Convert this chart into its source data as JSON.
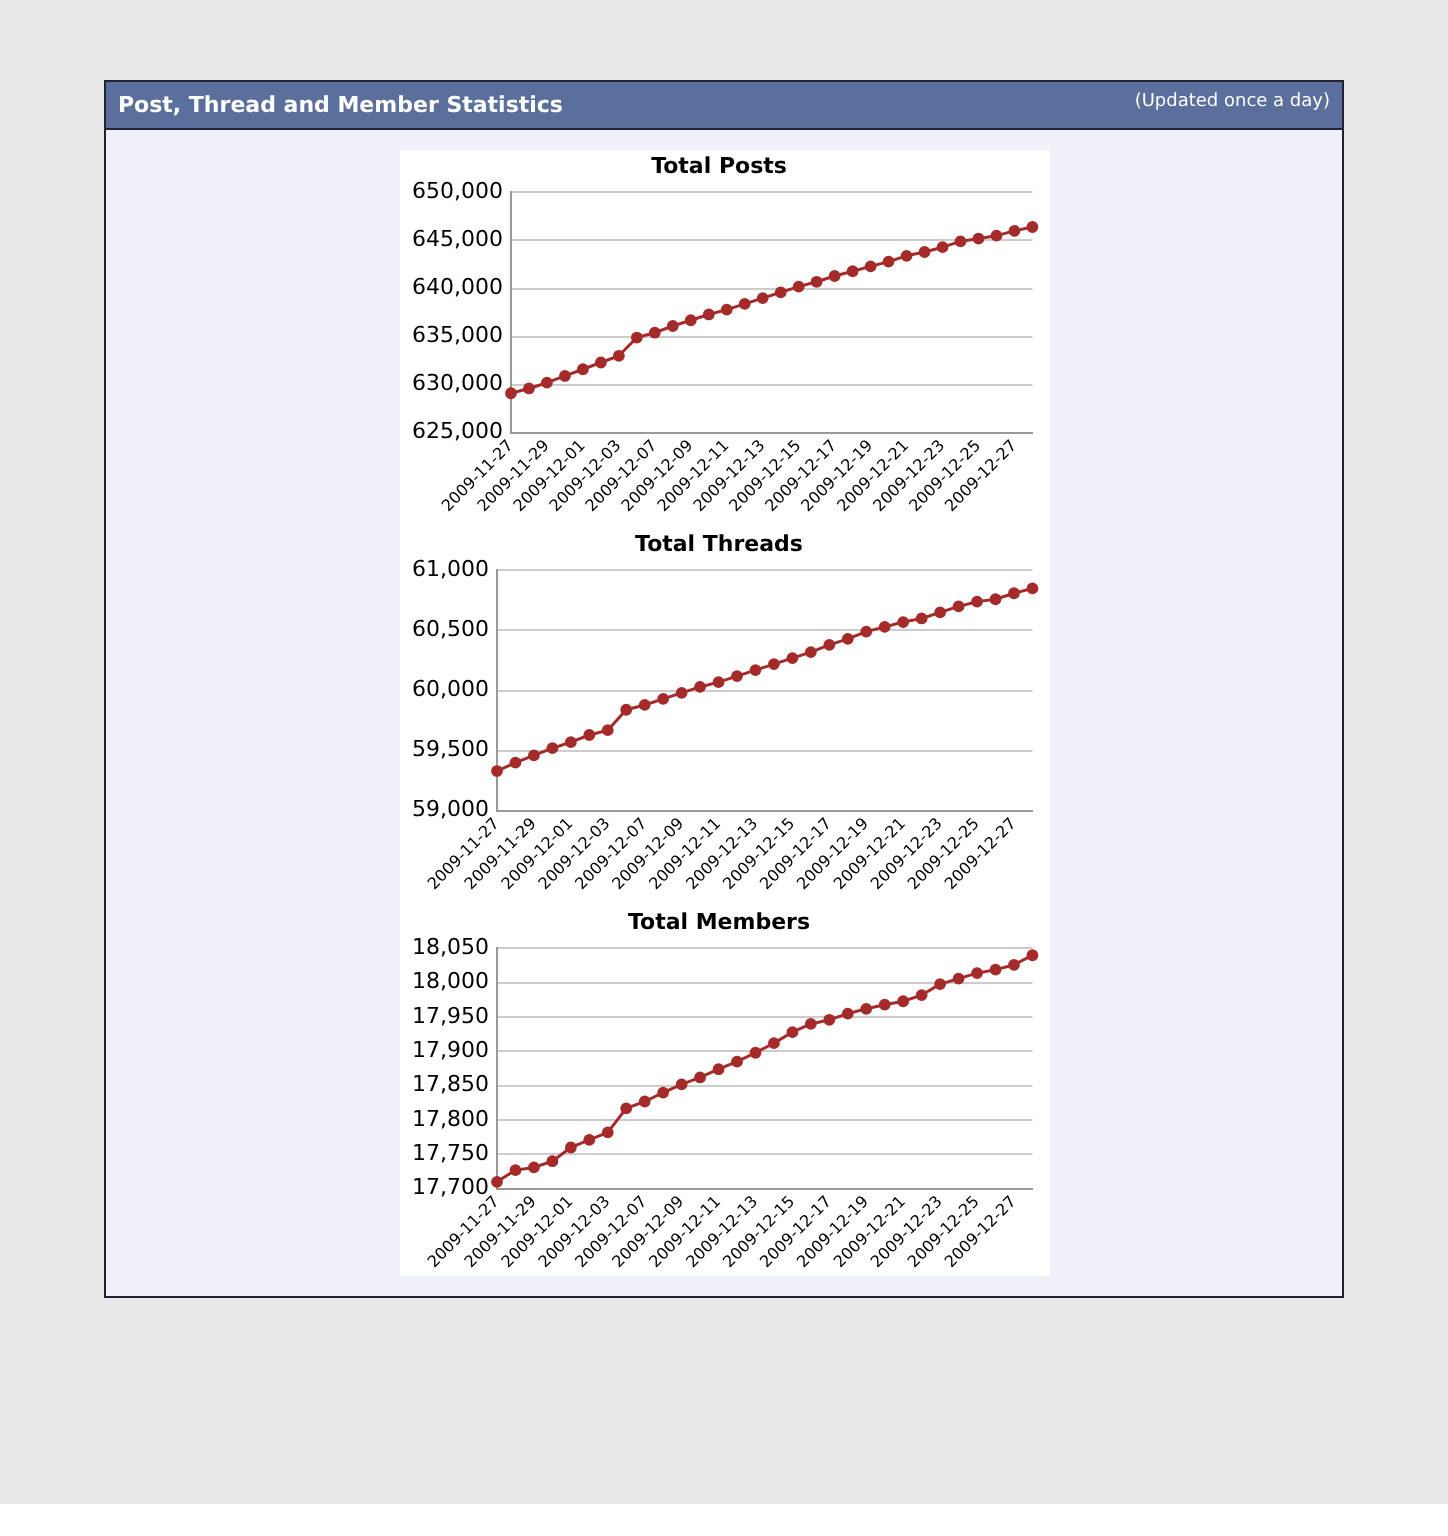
{
  "chart_data": [
    {
      "type": "line",
      "title": "Total Posts",
      "annotations": [
        "Post, Thread and Member Statistics",
        "(Updated once a day)"
      ],
      "categories": [
        "2009-11-27",
        null,
        "2009-11-29",
        null,
        "2009-12-01",
        null,
        "2009-12-03",
        null,
        "2009-12-07",
        null,
        "2009-12-09",
        null,
        "2009-12-11",
        null,
        "2009-12-13",
        null,
        "2009-12-15",
        null,
        "2009-12-17",
        null,
        "2009-12-19",
        null,
        "2009-12-21",
        null,
        "2009-12-23",
        null,
        "2009-12-25",
        null,
        "2009-12-27",
        null
      ],
      "values": [
        629100,
        629600,
        630200,
        630900,
        631600,
        632300,
        633000,
        634900,
        635400,
        636100,
        636700,
        637300,
        637800,
        638400,
        639000,
        639600,
        640200,
        640700,
        641300,
        641800,
        642300,
        642800,
        643400,
        643800,
        644300,
        644900,
        645200,
        645500,
        646000,
        646400
      ],
      "color": "#a52a2a",
      "marker": "circle",
      "grid": "y",
      "ylim": [
        625000,
        650000
      ],
      "yticks": [
        {
          "value": 625000,
          "label": "625,000"
        },
        {
          "value": 630000,
          "label": "630,000"
        },
        {
          "value": 635000,
          "label": "635,000"
        },
        {
          "value": 640000,
          "label": "640,000"
        },
        {
          "value": 645000,
          "label": "645,000"
        },
        {
          "value": 650000,
          "label": "650,000"
        }
      ]
    },
    {
      "type": "line",
      "title": "Total Threads",
      "categories": [
        "2009-11-27",
        null,
        "2009-11-29",
        null,
        "2009-12-01",
        null,
        "2009-12-03",
        null,
        "2009-12-07",
        null,
        "2009-12-09",
        null,
        "2009-12-11",
        null,
        "2009-12-13",
        null,
        "2009-12-15",
        null,
        "2009-12-17",
        null,
        "2009-12-19",
        null,
        "2009-12-21",
        null,
        "2009-12-23",
        null,
        "2009-12-25",
        null,
        "2009-12-27",
        null
      ],
      "values": [
        59330,
        59400,
        59460,
        59520,
        59570,
        59630,
        59670,
        59840,
        59880,
        59930,
        59980,
        60030,
        60070,
        60120,
        60170,
        60220,
        60270,
        60320,
        60380,
        60430,
        60490,
        60530,
        60570,
        60600,
        60650,
        60700,
        60740,
        60760,
        60810,
        60850
      ],
      "color": "#a52a2a",
      "marker": "circle",
      "grid": "y",
      "ylim": [
        59000,
        61000
      ],
      "yticks": [
        {
          "value": 59000,
          "label": "59,000"
        },
        {
          "value": 59500,
          "label": "59,500"
        },
        {
          "value": 60000,
          "label": "60,000"
        },
        {
          "value": 60500,
          "label": "60,500"
        },
        {
          "value": 61000,
          "label": "61,000"
        }
      ]
    },
    {
      "type": "line",
      "title": "Total Members",
      "categories": [
        "2009-11-27",
        null,
        "2009-11-29",
        null,
        "2009-12-01",
        null,
        "2009-12-03",
        null,
        "2009-12-07",
        null,
        "2009-12-09",
        null,
        "2009-12-11",
        null,
        "2009-12-13",
        null,
        "2009-12-15",
        null,
        "2009-12-17",
        null,
        "2009-12-19",
        null,
        "2009-12-21",
        null,
        "2009-12-23",
        null,
        "2009-12-25",
        null,
        "2009-12-27",
        null
      ],
      "values": [
        17710,
        17727,
        17731,
        17740,
        17760,
        17771,
        17782,
        17817,
        17827,
        17840,
        17852,
        17862,
        17874,
        17885,
        17898,
        17912,
        17928,
        17940,
        17946,
        17955,
        17962,
        17968,
        17973,
        17982,
        17998,
        18006,
        18014,
        18019,
        18026,
        18040
      ],
      "color": "#a52a2a",
      "marker": "circle",
      "grid": "y",
      "ylim": [
        17700,
        18050
      ],
      "yticks": [
        {
          "value": 17700,
          "label": "17,700"
        },
        {
          "value": 17750,
          "label": "17,750"
        },
        {
          "value": 17800,
          "label": "17,800"
        },
        {
          "value": 17850,
          "label": "17,850"
        },
        {
          "value": 17900,
          "label": "17,900"
        },
        {
          "value": 17950,
          "label": "17,950"
        },
        {
          "value": 18000,
          "label": "18,000"
        },
        {
          "value": 18050,
          "label": "18,050"
        }
      ]
    }
  ]
}
